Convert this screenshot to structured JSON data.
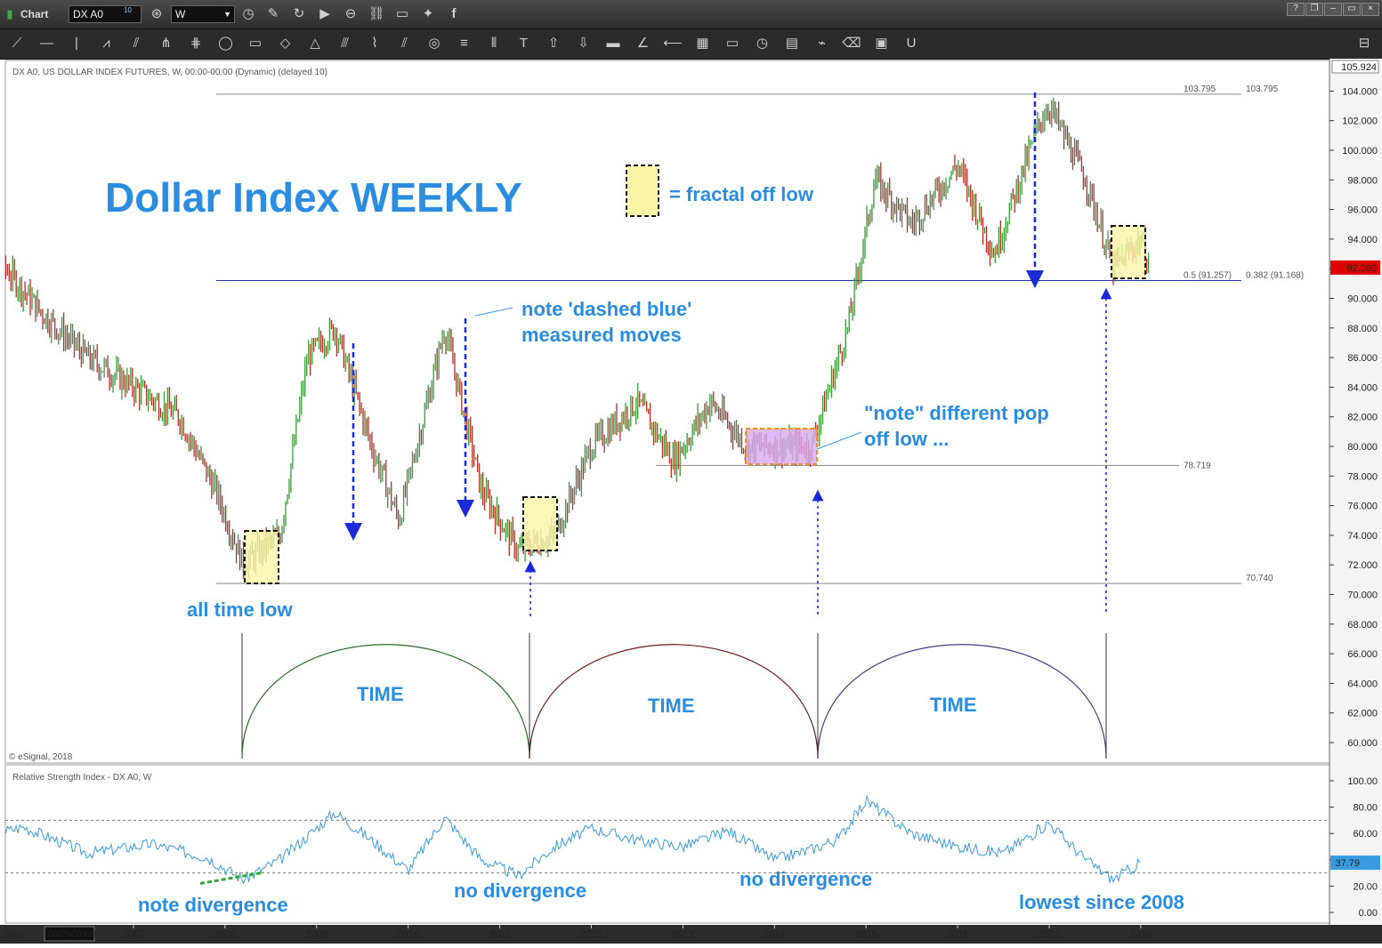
{
  "window": {
    "title": "Chart",
    "symbol": "DX A0",
    "symbol_badge": "10",
    "interval": "W"
  },
  "toolbar_icons": [
    "line-tool-icon",
    "horizontal-line-icon",
    "vertical-line-icon",
    "wave-icon",
    "fan-icon",
    "pitchfork-icon",
    "gann-icon",
    "ellipse-icon",
    "rectangle-icon",
    "eraser-shape-icon",
    "triangle-icon",
    "channel-icon",
    "cycle-icon",
    "parallel-lines-icon",
    "circle-target-icon",
    "horizontal-lines-icon",
    "vertical-lines-icon",
    "text-icon",
    "arrow-up-icon",
    "arrow-down-icon",
    "note-icon",
    "angle-icon",
    "fib-fan-icon",
    "grid-icon",
    "moe-icon",
    "period-icon",
    "pti-icon",
    "trend-icon",
    "eraser-icon",
    "chat-icon",
    "magnet-icon"
  ],
  "chart": {
    "header": "DX A0, US DOLLAR INDEX FUTURES, W, 00:00-00:00 (Dynamic) (delayed 10)",
    "copyright": "© eSignal, 2018",
    "price_axis": {
      "min": 60,
      "max": 104,
      "step": 2,
      "top_price_label": "105.924",
      "last_price": "92.080"
    },
    "date_start_label": "08/29/2005",
    "years": [
      "2007",
      "2008",
      "2009",
      "2010",
      "2011",
      "2012",
      "2013",
      "2014",
      "2015",
      "2016",
      "2017",
      "2018"
    ],
    "levels": {
      "high": {
        "value": 103.795,
        "label": "103.795",
        "label2": "103.795"
      },
      "fib": {
        "value": 91.2,
        "label": "0.5 (91.257)",
        "label2": "0.382 (91.168)"
      },
      "mid": {
        "value": 78.719,
        "label": "78.719"
      },
      "low": {
        "value": 70.74,
        "label": "70.740"
      }
    },
    "annotations": {
      "title": "Dollar Index WEEKLY",
      "legend_text": "= fractal off low",
      "dashed_note_1": "note 'dashed blue'",
      "dashed_note_2": "measured moves",
      "pop_note_1": "\"note\" different pop",
      "pop_note_2": "off low ...",
      "all_time_low": "all time low",
      "time_1": "TIME",
      "time_2": "TIME",
      "time_3": "TIME"
    }
  },
  "rsi": {
    "header": "Relative Strength Index - DX A0, W",
    "axis": {
      "min": 0,
      "max": 100,
      "step": 20
    },
    "bands": [
      70,
      30
    ],
    "last_value": "37.79",
    "annotations": {
      "note_divergence": "note divergence",
      "no_divergence_1": "no divergence",
      "no_divergence_2": "no divergence",
      "lowest": "lowest since 2008"
    }
  },
  "chart_data": {
    "type": "line",
    "title": "Dollar Index WEEKLY",
    "x_unit": "year",
    "series": [
      {
        "name": "DX A0",
        "x": [
          2005.2,
          2005.6,
          2006.0,
          2006.5,
          2007.0,
          2007.5,
          2007.9,
          2008.2,
          2008.6,
          2008.9,
          2009.2,
          2009.6,
          2009.9,
          2010.4,
          2010.8,
          2011.2,
          2011.6,
          2012.0,
          2012.5,
          2012.9,
          2013.3,
          2013.7,
          2014.0,
          2014.4,
          2014.8,
          2015.1,
          2015.5,
          2016.0,
          2016.4,
          2016.9,
          2017.0,
          2017.4,
          2017.7,
          2018.0,
          2018.1
        ],
        "values": [
          87,
          92,
          89,
          86,
          84,
          82,
          77,
          72,
          74,
          86,
          88,
          80,
          75,
          88,
          77,
          73,
          74,
          80,
          83,
          79,
          83,
          80,
          80,
          80,
          88,
          98,
          95,
          99,
          93,
          102,
          103,
          98,
          92,
          94,
          92
        ],
        "ohlc": false
      }
    ],
    "rsi": {
      "x": [
        2005.2,
        2005.8,
        2006.5,
        2007.2,
        2007.8,
        2008.2,
        2008.6,
        2009.2,
        2009.6,
        2010.0,
        2010.4,
        2010.8,
        2011.2,
        2011.6,
        2012.0,
        2012.5,
        2013.0,
        2013.5,
        2014.0,
        2014.4,
        2014.7,
        2015.0,
        2015.5,
        2016.0,
        2016.5,
        2017.0,
        2017.4,
        2017.7,
        2018.0
      ],
      "values": [
        55,
        65,
        45,
        52,
        42,
        25,
        40,
        76,
        55,
        32,
        72,
        40,
        28,
        50,
        64,
        55,
        50,
        62,
        40,
        48,
        56,
        85,
        60,
        50,
        45,
        68,
        40,
        25,
        37.79
      ]
    }
  }
}
